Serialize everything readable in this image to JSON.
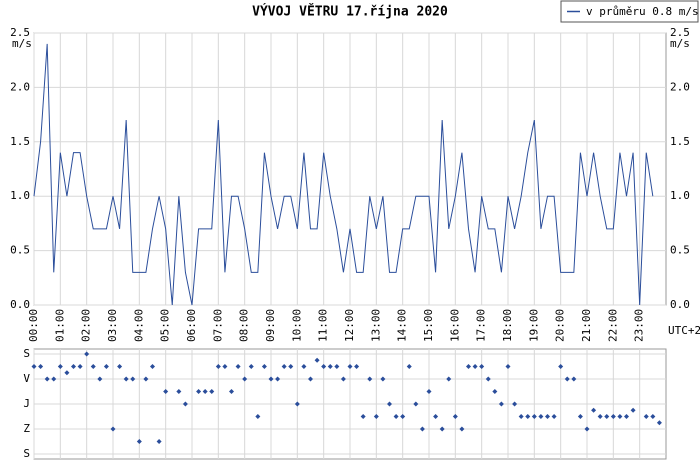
{
  "chart_data": [
    {
      "type": "line",
      "title": "VÝVOJ VĚTRU  17.října 2020",
      "y_label": "m/s",
      "x_label": "UTC+2",
      "x": [
        "00:00",
        "00:15",
        "00:30",
        "00:45",
        "01:00",
        "01:15",
        "01:30",
        "01:45",
        "02:00",
        "02:15",
        "02:30",
        "02:45",
        "03:00",
        "03:15",
        "03:30",
        "03:45",
        "04:00",
        "04:15",
        "04:30",
        "04:45",
        "05:00",
        "05:15",
        "05:30",
        "05:45",
        "06:00",
        "06:15",
        "06:30",
        "06:45",
        "07:00",
        "07:15",
        "07:30",
        "07:45",
        "08:00",
        "08:15",
        "08:30",
        "08:45",
        "09:00",
        "09:15",
        "09:30",
        "09:45",
        "10:00",
        "10:15",
        "10:30",
        "10:45",
        "11:00",
        "11:15",
        "11:30",
        "11:45",
        "12:00",
        "12:15",
        "12:30",
        "12:45",
        "13:00",
        "13:15",
        "13:30",
        "13:45",
        "14:00",
        "14:15",
        "14:30",
        "14:45",
        "15:00",
        "15:15",
        "15:30",
        "15:45",
        "16:00",
        "16:15",
        "16:30",
        "16:45",
        "17:00",
        "17:15",
        "17:30",
        "17:45",
        "18:00",
        "18:15",
        "18:30",
        "18:45",
        "19:00",
        "19:15",
        "19:30",
        "19:45",
        "20:00",
        "20:15",
        "20:30",
        "20:45",
        "21:00",
        "21:15",
        "21:30",
        "21:45",
        "22:00",
        "22:15",
        "22:30",
        "22:45",
        "23:00",
        "23:15",
        "23:30",
        "23:45"
      ],
      "series": [
        {
          "name": "v průměru 0.8 m/s",
          "color": "#2b4e9b",
          "values": [
            1.0,
            1.5,
            2.4,
            0.3,
            1.4,
            1.0,
            1.4,
            1.4,
            1.0,
            0.7,
            0.7,
            0.7,
            1.0,
            0.7,
            1.7,
            0.3,
            0.3,
            0.3,
            0.7,
            1.0,
            0.7,
            0.0,
            1.0,
            0.3,
            0.0,
            0.7,
            0.7,
            0.7,
            1.7,
            0.3,
            1.0,
            1.0,
            0.7,
            0.3,
            0.3,
            1.4,
            1.0,
            0.7,
            1.0,
            1.0,
            0.7,
            1.4,
            0.7,
            0.7,
            1.4,
            1.0,
            0.7,
            0.3,
            0.7,
            0.3,
            0.3,
            1.0,
            0.7,
            1.0,
            0.3,
            0.3,
            0.7,
            0.7,
            1.0,
            1.0,
            1.0,
            0.3,
            1.7,
            0.7,
            1.0,
            1.4,
            0.7,
            0.3,
            1.0,
            0.7,
            0.7,
            0.3,
            1.0,
            0.7,
            1.0,
            1.4,
            1.7,
            0.7,
            1.0,
            1.0,
            0.3,
            0.3,
            0.3,
            1.4,
            1.0,
            1.4,
            1.0,
            0.7,
            0.7,
            1.4,
            1.0,
            1.4,
            0.0,
            1.4,
            1.0,
            null
          ]
        }
      ],
      "xlim": [
        "00:00",
        "24:00"
      ],
      "xticks": [
        "00:00",
        "01:00",
        "02:00",
        "03:00",
        "04:00",
        "05:00",
        "06:00",
        "07:00",
        "08:00",
        "09:00",
        "10:00",
        "11:00",
        "12:00",
        "13:00",
        "14:00",
        "15:00",
        "16:00",
        "17:00",
        "18:00",
        "19:00",
        "20:00",
        "21:00",
        "22:00",
        "23:00"
      ],
      "ylim": [
        0,
        2.5
      ],
      "yticks": [
        {
          "value": 0,
          "label": "0.0"
        },
        0.5,
        {
          "value": 1,
          "label": "1.0"
        },
        1.5,
        {
          "value": 2,
          "label": "2.0"
        },
        2.5
      ],
      "grid": true,
      "legend": "top-right"
    },
    {
      "type": "scatter",
      "x": [
        "00:00",
        "00:15",
        "00:30",
        "00:45",
        "01:00",
        "01:15",
        "01:30",
        "01:45",
        "02:00",
        "02:15",
        "02:30",
        "02:45",
        "03:00",
        "03:15",
        "03:30",
        "03:45",
        "04:00",
        "04:15",
        "04:30",
        "04:45",
        "05:00",
        "05:15",
        "05:30",
        "05:45",
        "06:00",
        "06:15",
        "06:30",
        "06:45",
        "07:00",
        "07:15",
        "07:30",
        "07:45",
        "08:00",
        "08:15",
        "08:30",
        "08:45",
        "09:00",
        "09:15",
        "09:30",
        "09:45",
        "10:00",
        "10:15",
        "10:30",
        "10:45",
        "11:00",
        "11:15",
        "11:30",
        "11:45",
        "12:00",
        "12:15",
        "12:30",
        "12:45",
        "13:00",
        "13:15",
        "13:30",
        "13:45",
        "14:00",
        "14:15",
        "14:30",
        "14:45",
        "15:00",
        "15:15",
        "15:30",
        "15:45",
        "16:00",
        "16:15",
        "16:30",
        "16:45",
        "17:00",
        "17:15",
        "17:30",
        "17:45",
        "18:00",
        "18:15",
        "18:30",
        "18:45",
        "19:00",
        "19:15",
        "19:30",
        "19:45",
        "20:00",
        "20:15",
        "20:30",
        "20:45",
        "21:00",
        "21:15",
        "21:30",
        "21:45",
        "22:00",
        "22:15",
        "22:30",
        "22:45",
        "23:00",
        "23:15",
        "23:30",
        "23:45"
      ],
      "series": [
        {
          "color": "#2b4e9b",
          "values": [
            45,
            45,
            90,
            90,
            45,
            67.5,
            45,
            45,
            0,
            45,
            90,
            45,
            270,
            45,
            90,
            90,
            315,
            90,
            45,
            315,
            135,
            null,
            135,
            180,
            null,
            135,
            135,
            135,
            45,
            45,
            135,
            45,
            90,
            45,
            225,
            45,
            90,
            90,
            45,
            45,
            180,
            45,
            90,
            22.5,
            45,
            45,
            45,
            90,
            45,
            45,
            225,
            90,
            225,
            90,
            180,
            225,
            225,
            45,
            180,
            270,
            135,
            225,
            270,
            90,
            225,
            270,
            45,
            45,
            45,
            90,
            135,
            180,
            45,
            180,
            225,
            225,
            225,
            225,
            225,
            225,
            45,
            90,
            90,
            225,
            270,
            202.5,
            225,
            225,
            225,
            225,
            225,
            202.5,
            null,
            225,
            225,
            247.5
          ]
        }
      ],
      "xlim": [
        "00:00",
        "24:00"
      ],
      "ylim": [
        360,
        0
      ],
      "yticks": [
        {
          "value": 0,
          "label": "S"
        },
        {
          "value": 90,
          "label": "V"
        },
        {
          "value": 180,
          "label": "J"
        },
        {
          "value": 270,
          "label": "Z"
        },
        {
          "value": 360,
          "label": "S"
        }
      ],
      "grid": true
    }
  ]
}
